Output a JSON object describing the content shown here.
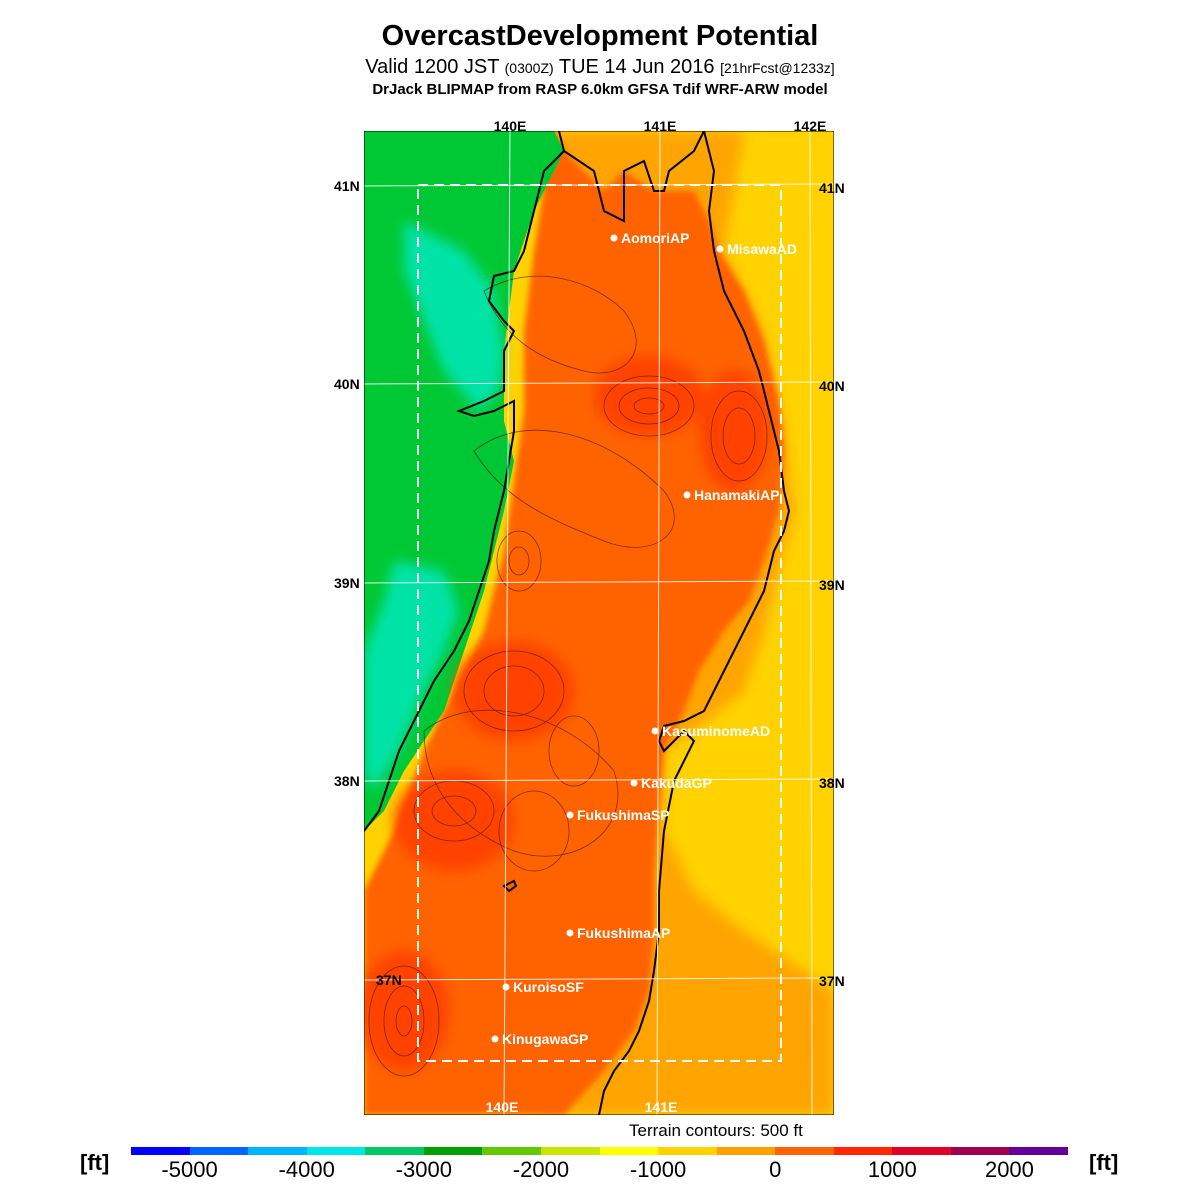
{
  "title": "OvercastDevelopment Potential",
  "subtitle": {
    "valid": "Valid 1200 JST",
    "utc": "(0300Z)",
    "date": "TUE 14 Jun 2016",
    "forecast": "[21hrFcst@1233z]"
  },
  "model_line": "DrJack BLIPMAP from RASP 6.0km GFSA Tdif WRF-ARW model",
  "longitude_labels": {
    "top": [
      "140E",
      "141E",
      "142E"
    ],
    "bottom": [
      "140E",
      "141E"
    ]
  },
  "latitude_labels": {
    "left": [
      "41N",
      "40N",
      "39N",
      "38N",
      "37N"
    ],
    "right": [
      "41N",
      "40N",
      "39N",
      "38N",
      "37N"
    ]
  },
  "stations": [
    {
      "name": "AomoriAP"
    },
    {
      "name": "MisawaAD"
    },
    {
      "name": "HanamakiAP"
    },
    {
      "name": "KasuminomeAD"
    },
    {
      "name": "KakudaGP"
    },
    {
      "name": "FukushimaSP"
    },
    {
      "name": "FukushimaAP"
    },
    {
      "name": "KuroisoSF"
    },
    {
      "name": "KinugawaGP"
    }
  ],
  "contour_note": "Terrain contours: 500 ft",
  "colorbar": {
    "unit": "[ft]",
    "ticks": [
      "-5000",
      "-4000",
      "-3000",
      "-2000",
      "-1000",
      "0",
      "1000",
      "2000"
    ],
    "colors": [
      "#0000ff",
      "#0064ff",
      "#00b4ff",
      "#00e6e6",
      "#00c864",
      "#00a000",
      "#64c800",
      "#c8e600",
      "#ffff00",
      "#ffd200",
      "#ffa000",
      "#ff6400",
      "#ff2800",
      "#e00028",
      "#a00050",
      "#640096"
    ]
  },
  "legend_colors": {
    "sea_west_far": "#00c834",
    "sea_west_near": "#00e6b4",
    "land_core": "#ff3c00",
    "land_edge": "#ff6400",
    "sea_east": "#ffd200",
    "sea_east_edge": "#ffa000"
  }
}
